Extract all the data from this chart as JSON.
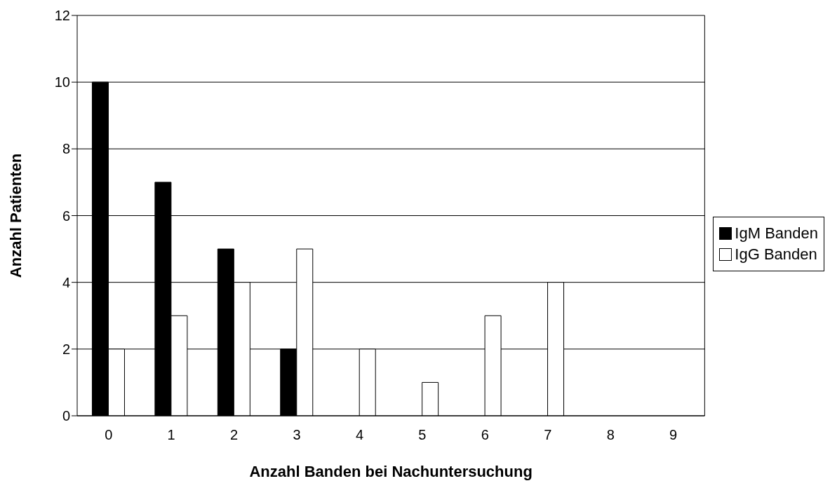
{
  "chart_data": {
    "type": "bar",
    "xlabel": "Anzahl Banden bei Nachuntersuchung",
    "ylabel": "Anzahl Patienten",
    "categories": [
      "0",
      "1",
      "2",
      "3",
      "4",
      "5",
      "6",
      "7",
      "8",
      "9"
    ],
    "series": [
      {
        "name": "IgM Banden",
        "color": "#000000",
        "values": [
          10,
          7,
          5,
          2,
          0,
          0,
          0,
          0,
          0,
          0
        ]
      },
      {
        "name": "IgG Banden",
        "color": "#ffffff",
        "values": [
          2,
          3,
          4,
          5,
          2,
          1,
          3,
          4,
          0,
          0
        ]
      }
    ],
    "ylim": [
      0,
      12
    ],
    "yticks": [
      0,
      2,
      4,
      6,
      8,
      10,
      12
    ],
    "grid": "y",
    "legend": "right"
  }
}
